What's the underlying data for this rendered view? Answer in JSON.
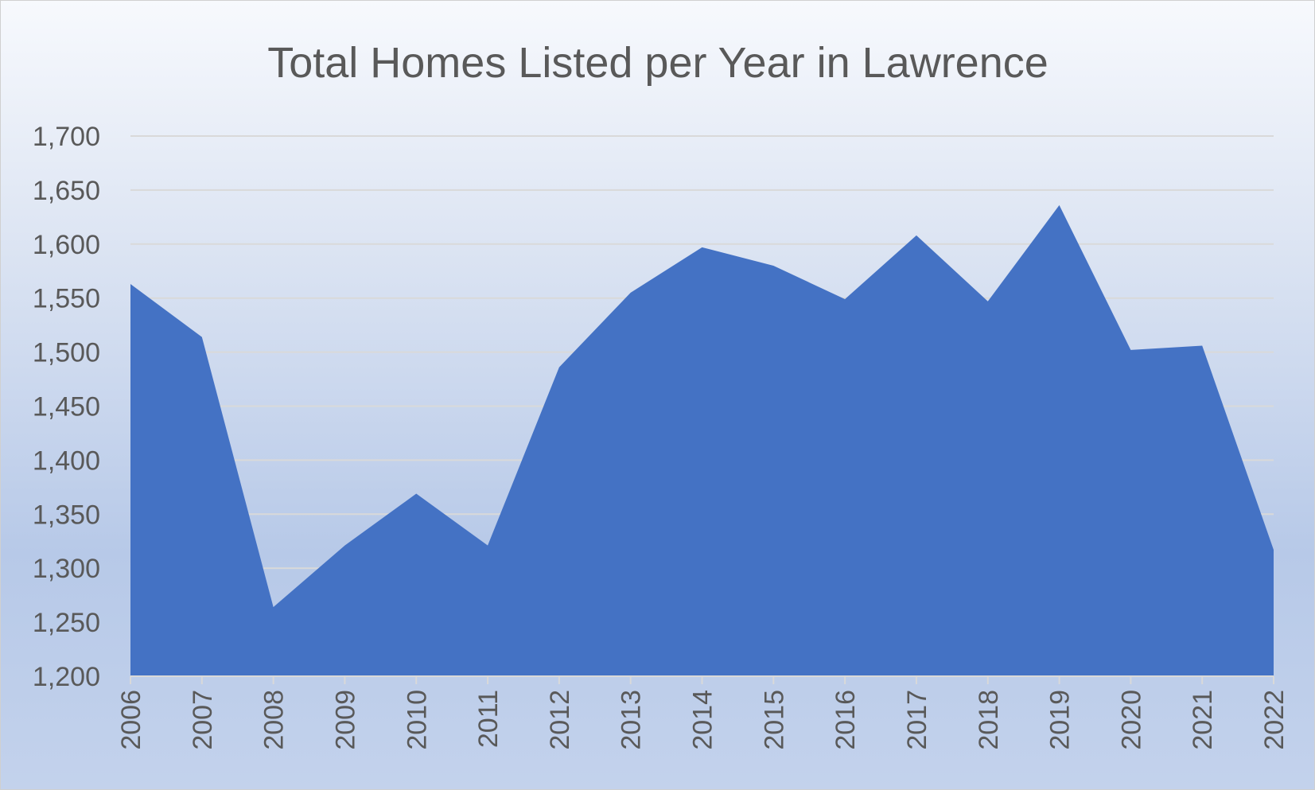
{
  "chart_data": {
    "type": "area",
    "title": "Total Homes Listed per Year in Lawrence",
    "xlabel": "",
    "ylabel": "",
    "categories": [
      "2006",
      "2007",
      "2008",
      "2009",
      "2010",
      "2011",
      "2012",
      "2013",
      "2014",
      "2015",
      "2016",
      "2017",
      "2018",
      "2019",
      "2020",
      "2021",
      "2022"
    ],
    "series": [
      {
        "values": [
          1563,
          1514,
          1264,
          1321,
          1369,
          1321,
          1486,
          1555,
          1597,
          1580,
          1549,
          1608,
          1547,
          1636,
          1502,
          1506,
          1317
        ]
      }
    ],
    "ylim": [
      1200,
      1700
    ],
    "yticks": [
      "1,200",
      "1,250",
      "1,300",
      "1,350",
      "1,400",
      "1,450",
      "1,500",
      "1,550",
      "1,600",
      "1,650",
      "1,700"
    ],
    "grid": true,
    "legend": "none",
    "colors": {
      "area": "#4472c4",
      "grid": "#d9d9d9",
      "text": "#595959"
    }
  }
}
